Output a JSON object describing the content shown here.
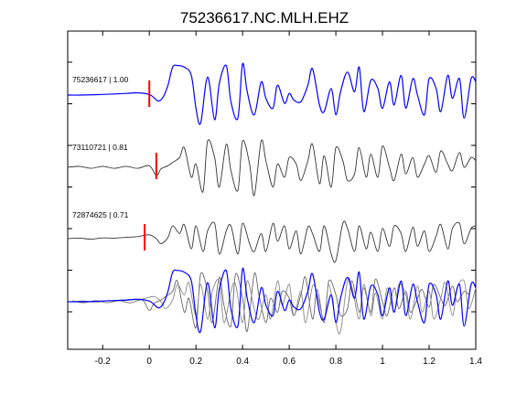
{
  "chart_data": {
    "type": "line",
    "title": "75236617.NC.MLH.EHZ",
    "xlabel": "",
    "ylabel": "",
    "xlim": [
      -0.35,
      1.4
    ],
    "x_ticks": [
      -0.2,
      0,
      0.2,
      0.4,
      0.6,
      0.8,
      1,
      1.2,
      1.4
    ],
    "x_tick_labels": [
      "-0.2",
      "0",
      "0.2",
      "0.4",
      "0.6",
      "0.8",
      "1",
      "1.2",
      "1.4"
    ],
    "grid": false,
    "legend": "none",
    "pick_color": "#ff0000",
    "pick_time": 0,
    "series": [
      {
        "name": "75236617 | 1.00",
        "color": "#0000ff",
        "pick": 0.0,
        "x": [
          -0.35,
          -0.3,
          -0.2,
          -0.1,
          -0.05,
          0.0,
          0.02,
          0.04,
          0.06,
          0.08,
          0.1,
          0.12,
          0.15,
          0.18,
          0.2,
          0.22,
          0.25,
          0.28,
          0.3,
          0.33,
          0.35,
          0.38,
          0.4,
          0.42,
          0.45,
          0.48,
          0.5,
          0.53,
          0.55,
          0.58,
          0.6,
          0.62,
          0.65,
          0.68,
          0.7,
          0.73,
          0.75,
          0.78,
          0.8,
          0.82,
          0.85,
          0.88,
          0.9,
          0.92,
          0.95,
          0.98,
          1.0,
          1.03,
          1.05,
          1.08,
          1.1,
          1.13,
          1.15,
          1.18,
          1.2,
          1.23,
          1.25,
          1.28,
          1.3,
          1.33,
          1.35,
          1.38,
          1.4
        ],
        "y": [
          0,
          0,
          0.02,
          0.05,
          0.07,
          0.02,
          -0.08,
          -0.18,
          -0.05,
          0.3,
          0.85,
          0.9,
          0.85,
          0.6,
          -0.4,
          -0.85,
          0.55,
          -0.75,
          0.35,
          0.9,
          -0.2,
          -0.7,
          0.95,
          0.1,
          -0.6,
          0.4,
          -0.1,
          -0.4,
          0.3,
          -0.25,
          0.05,
          -0.15,
          -0.2,
          0.3,
          0.8,
          -0.3,
          -0.5,
          0.2,
          -0.6,
          0.1,
          0.7,
          0.1,
          0.85,
          -0.5,
          0.45,
          0.2,
          -0.4,
          0.4,
          -0.3,
          0.6,
          -0.4,
          0.5,
          0.0,
          -0.6,
          0.5,
          0.2,
          -0.5,
          0.6,
          -0.1,
          0.5,
          -0.7,
          0.5,
          0.4
        ]
      },
      {
        "name": "73110721 | 0.81",
        "color": "#333333",
        "pick": 0.03,
        "x": [
          -0.35,
          -0.3,
          -0.25,
          -0.2,
          -0.15,
          -0.1,
          -0.05,
          0.0,
          0.03,
          0.05,
          0.08,
          0.1,
          0.13,
          0.15,
          0.18,
          0.2,
          0.23,
          0.25,
          0.28,
          0.3,
          0.33,
          0.35,
          0.38,
          0.4,
          0.43,
          0.45,
          0.48,
          0.5,
          0.53,
          0.55,
          0.58,
          0.6,
          0.63,
          0.65,
          0.68,
          0.7,
          0.73,
          0.75,
          0.78,
          0.8,
          0.83,
          0.85,
          0.88,
          0.9,
          0.93,
          0.95,
          0.98,
          1.0,
          1.03,
          1.05,
          1.08,
          1.1,
          1.13,
          1.15,
          1.18,
          1.2,
          1.23,
          1.25,
          1.28,
          1.3,
          1.33,
          1.35,
          1.38,
          1.4
        ],
        "y": [
          0,
          0.03,
          -0.03,
          0.03,
          -0.03,
          0.03,
          -0.03,
          0.05,
          -0.25,
          -0.05,
          0.05,
          0.15,
          0.3,
          0.6,
          -0.3,
          0.1,
          -0.75,
          0.8,
          0.3,
          -0.6,
          0.7,
          -0.1,
          -0.7,
          0.8,
          0.1,
          -0.85,
          0.8,
          0.2,
          -0.6,
          0.1,
          -0.3,
          0.3,
          0.1,
          -0.4,
          0.2,
          0.7,
          -0.5,
          0.35,
          -0.6,
          0.6,
          0.2,
          -0.4,
          -0.2,
          0.6,
          -0.3,
          0.4,
          -0.3,
          0.65,
          0.0,
          -0.4,
          0.4,
          -0.2,
          0.3,
          -0.3,
          0.1,
          0.35,
          -0.15,
          0.5,
          0.1,
          -0.1,
          0.45,
          0.0,
          0.3,
          0.2
        ]
      },
      {
        "name": "72874625 | 0.71",
        "color": "#333333",
        "pick": -0.02,
        "x": [
          -0.35,
          -0.3,
          -0.25,
          -0.2,
          -0.15,
          -0.1,
          -0.05,
          0.0,
          0.03,
          0.05,
          0.08,
          0.1,
          0.13,
          0.15,
          0.18,
          0.2,
          0.23,
          0.25,
          0.28,
          0.3,
          0.33,
          0.35,
          0.38,
          0.4,
          0.43,
          0.45,
          0.48,
          0.5,
          0.53,
          0.55,
          0.58,
          0.6,
          0.63,
          0.65,
          0.68,
          0.7,
          0.73,
          0.75,
          0.78,
          0.8,
          0.83,
          0.85,
          0.88,
          0.9,
          0.93,
          0.95,
          0.98,
          1.0,
          1.03,
          1.05,
          1.08,
          1.1,
          1.13,
          1.15,
          1.18,
          1.2,
          1.23,
          1.25,
          1.28,
          1.3,
          1.33,
          1.35,
          1.38,
          1.4
        ],
        "y": [
          0,
          0.02,
          -0.02,
          0.03,
          0.02,
          0.05,
          0.08,
          0.15,
          0.0,
          -0.2,
          0.05,
          0.5,
          0.2,
          0.55,
          -0.4,
          0.5,
          -0.5,
          0.3,
          0.6,
          -0.6,
          0.3,
          0.5,
          -0.6,
          0.6,
          -0.2,
          -0.5,
          0.2,
          -0.5,
          0.6,
          -0.1,
          0.5,
          -0.4,
          0.3,
          -0.6,
          0.45,
          0.2,
          -0.5,
          0.5,
          -0.6,
          -0.85,
          0.6,
          0.4,
          -0.5,
          0.5,
          -0.4,
          0.25,
          -0.5,
          0.4,
          -0.3,
          0.5,
          0.2,
          -0.5,
          0.45,
          -0.3,
          0.3,
          -0.5,
          0.1,
          0.55,
          -0.4,
          0.4,
          0.6,
          -0.2,
          0.4,
          0.5
        ]
      }
    ]
  }
}
